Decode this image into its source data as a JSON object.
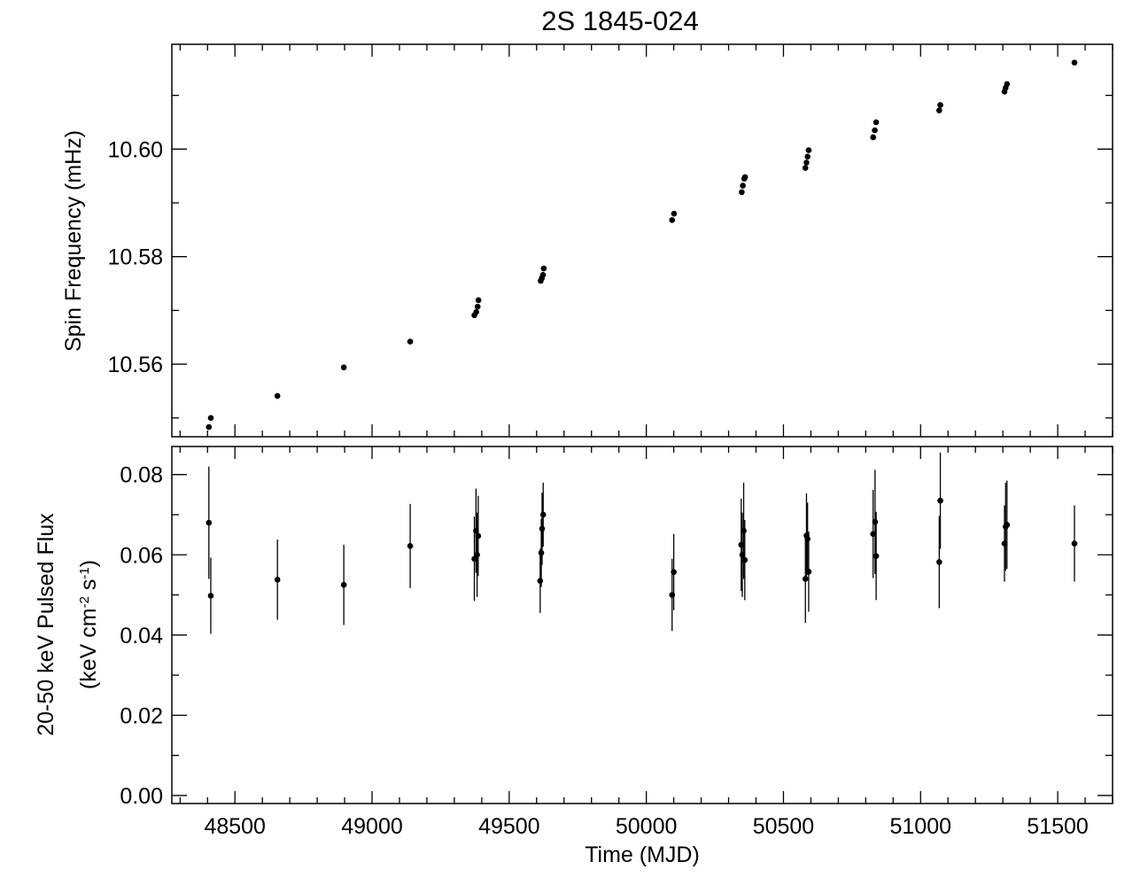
{
  "chart_data": {
    "type": "scatter",
    "title": "2S 1845-024",
    "xlabel": "Time (MJD)",
    "xlim": [
      48270,
      51700
    ],
    "x_ticks": [
      "48500",
      "49000",
      "49500",
      "50000",
      "50500",
      "51000",
      "51500"
    ],
    "panels": [
      {
        "id": "top",
        "ylabel": "Spin Frequency (mHz)",
        "ylim": [
          10.5465,
          10.6195
        ],
        "y_ticks": [
          "10.56",
          "10.58",
          "10.60"
        ],
        "points": [
          {
            "x": 48405,
            "y": 10.5483
          },
          {
            "x": 48412,
            "y": 10.55
          },
          {
            "x": 48655,
            "y": 10.5541
          },
          {
            "x": 48897,
            "y": 10.5594
          },
          {
            "x": 49139,
            "y": 10.5642
          },
          {
            "x": 49373,
            "y": 10.5691
          },
          {
            "x": 49380,
            "y": 10.5697
          },
          {
            "x": 49385,
            "y": 10.5707
          },
          {
            "x": 49388,
            "y": 10.5719
          },
          {
            "x": 49615,
            "y": 10.5755
          },
          {
            "x": 49619,
            "y": 10.576
          },
          {
            "x": 49623,
            "y": 10.5766
          },
          {
            "x": 49626,
            "y": 10.5778
          },
          {
            "x": 50094,
            "y": 10.5868
          },
          {
            "x": 50101,
            "y": 10.588
          },
          {
            "x": 50348,
            "y": 10.592
          },
          {
            "x": 50352,
            "y": 10.5932
          },
          {
            "x": 50357,
            "y": 10.5945
          },
          {
            "x": 50360,
            "y": 10.5948
          },
          {
            "x": 50580,
            "y": 10.5965
          },
          {
            "x": 50584,
            "y": 10.5975
          },
          {
            "x": 50588,
            "y": 10.5986
          },
          {
            "x": 50592,
            "y": 10.5998
          },
          {
            "x": 50827,
            "y": 10.6022
          },
          {
            "x": 50833,
            "y": 10.6035
          },
          {
            "x": 50838,
            "y": 10.605
          },
          {
            "x": 51068,
            "y": 10.6072
          },
          {
            "x": 51072,
            "y": 10.6082
          },
          {
            "x": 51306,
            "y": 10.6107
          },
          {
            "x": 51310,
            "y": 10.6114
          },
          {
            "x": 51315,
            "y": 10.6121
          },
          {
            "x": 51561,
            "y": 10.6161
          }
        ]
      },
      {
        "id": "bottom",
        "ylabel": "20-50 keV Pulsed Flux",
        "ylabel_line2": "(keV cm-2 s-1)",
        "ylim": [
          -0.002,
          0.087
        ],
        "y_ticks": [
          "0.00",
          "0.02",
          "0.04",
          "0.06",
          "0.08"
        ],
        "points": [
          {
            "x": 48405,
            "y": 0.068,
            "err": 0.014
          },
          {
            "x": 48412,
            "y": 0.0498,
            "err": 0.0095
          },
          {
            "x": 48655,
            "y": 0.0538,
            "err": 0.01
          },
          {
            "x": 48897,
            "y": 0.0525,
            "err": 0.01
          },
          {
            "x": 49139,
            "y": 0.0622,
            "err": 0.0105
          },
          {
            "x": 49373,
            "y": 0.059,
            "err": 0.0105
          },
          {
            "x": 49379,
            "y": 0.066,
            "err": 0.0105
          },
          {
            "x": 49383,
            "y": 0.06,
            "err": 0.0105
          },
          {
            "x": 49387,
            "y": 0.0647,
            "err": 0.01
          },
          {
            "x": 49613,
            "y": 0.0535,
            "err": 0.008
          },
          {
            "x": 49617,
            "y": 0.0605,
            "err": 0.0085
          },
          {
            "x": 49620,
            "y": 0.0665,
            "err": 0.009
          },
          {
            "x": 49624,
            "y": 0.07,
            "err": 0.008
          },
          {
            "x": 50094,
            "y": 0.05,
            "err": 0.009
          },
          {
            "x": 50100,
            "y": 0.0557,
            "err": 0.0095
          },
          {
            "x": 50346,
            "y": 0.0625,
            "err": 0.0115
          },
          {
            "x": 50350,
            "y": 0.06,
            "err": 0.0105
          },
          {
            "x": 50355,
            "y": 0.066,
            "err": 0.012
          },
          {
            "x": 50359,
            "y": 0.0587,
            "err": 0.01
          },
          {
            "x": 50580,
            "y": 0.054,
            "err": 0.011
          },
          {
            "x": 50584,
            "y": 0.0648,
            "err": 0.0105
          },
          {
            "x": 50588,
            "y": 0.064,
            "err": 0.009
          },
          {
            "x": 50592,
            "y": 0.0558,
            "err": 0.01
          },
          {
            "x": 50827,
            "y": 0.0652,
            "err": 0.011
          },
          {
            "x": 50834,
            "y": 0.0682,
            "err": 0.013
          },
          {
            "x": 50838,
            "y": 0.0597,
            "err": 0.011
          },
          {
            "x": 51068,
            "y": 0.0582,
            "err": 0.0115
          },
          {
            "x": 51072,
            "y": 0.0735,
            "err": 0.012
          },
          {
            "x": 51306,
            "y": 0.0628,
            "err": 0.0095
          },
          {
            "x": 51310,
            "y": 0.067,
            "err": 0.011
          },
          {
            "x": 51315,
            "y": 0.0675,
            "err": 0.011
          },
          {
            "x": 51561,
            "y": 0.0628,
            "err": 0.0095
          }
        ]
      }
    ]
  }
}
